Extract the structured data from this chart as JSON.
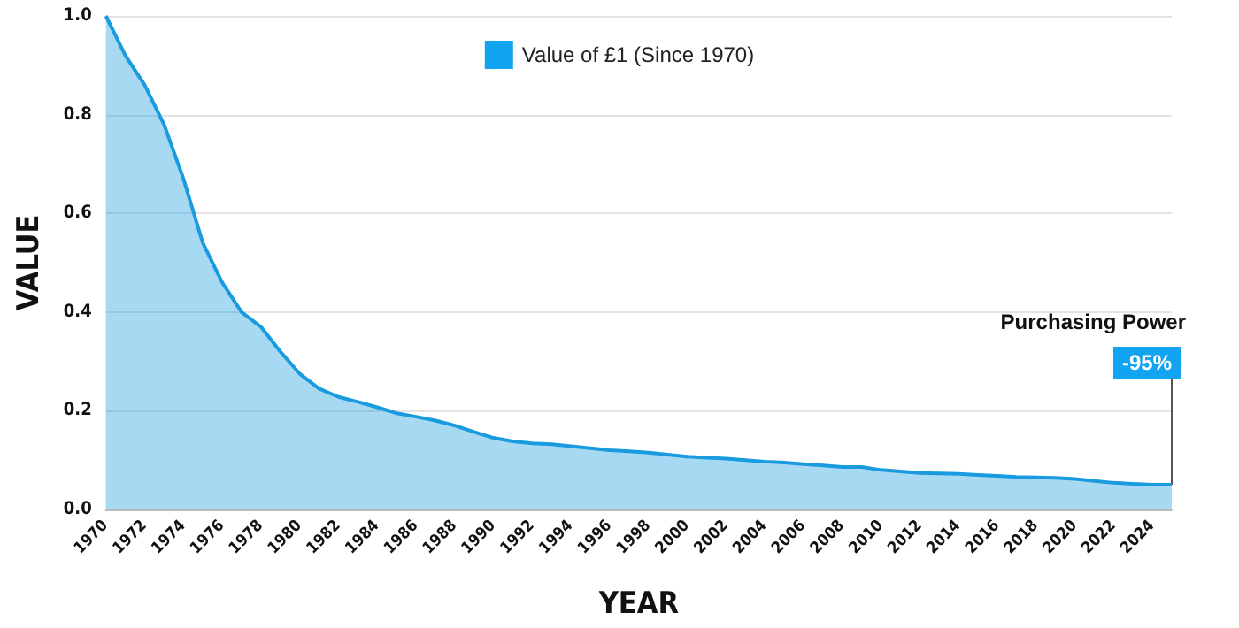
{
  "chart_data": {
    "type": "area",
    "xlabel": "YEAR",
    "ylabel": "VALUE",
    "categories": [
      "1970",
      null,
      "1972",
      null,
      "1974",
      null,
      "1976",
      null,
      "1978",
      null,
      "1980",
      null,
      "1982",
      null,
      "1984",
      null,
      "1986",
      null,
      "1988",
      null,
      "1990",
      null,
      "1992",
      null,
      "1994",
      null,
      "1996",
      null,
      "1998",
      null,
      "2000",
      null,
      "2002",
      null,
      "2004",
      null,
      "2006",
      null,
      "2008",
      null,
      "2010",
      null,
      "2012",
      null,
      "2014",
      null,
      "2016",
      null,
      "2018",
      null,
      "2020",
      null,
      "2022",
      null,
      "2024",
      null
    ],
    "series": [
      {
        "name": "Value of £1 (Since 1970)",
        "color": "#1a9be0",
        "values": [
          1.0,
          0.92,
          0.86,
          0.78,
          0.67,
          0.54,
          0.46,
          0.4,
          0.37,
          0.32,
          0.275,
          0.245,
          0.228,
          0.218,
          0.207,
          0.195,
          0.188,
          0.18,
          0.17,
          0.157,
          0.145,
          0.138,
          0.134,
          0.132,
          0.128,
          0.124,
          0.12,
          0.118,
          0.115,
          0.111,
          0.107,
          0.105,
          0.103,
          0.1,
          0.097,
          0.095,
          0.092,
          0.089,
          0.086,
          0.086,
          0.08,
          0.077,
          0.074,
          0.073,
          0.072,
          0.07,
          0.068,
          0.066,
          0.065,
          0.064,
          0.062,
          0.058,
          0.054,
          0.052,
          0.05,
          0.05
        ]
      }
    ],
    "ylim": [
      0,
      1
    ],
    "yticks": [
      {
        "value": 0,
        "label": "0.0"
      },
      0.2,
      0.4,
      0.6,
      0.8,
      {
        "value": 1,
        "label": "1.0"
      }
    ],
    "grid": "y",
    "legend": "top",
    "marker": "none",
    "line_style": "solid",
    "annotations": [
      "Purchasing Power",
      "-95%"
    ]
  }
}
